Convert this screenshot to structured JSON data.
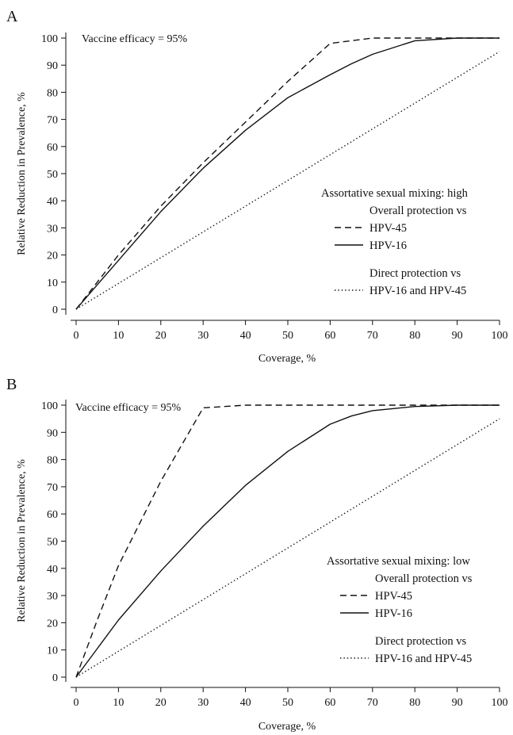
{
  "chart_data": [
    {
      "type": "line",
      "panel_label": "A",
      "annotation": "Vaccine efficacy = 95%",
      "xlabel": "Coverage, %",
      "ylabel": "Relative Reduction in Prevalence, %",
      "xlim": [
        0,
        100
      ],
      "ylim": [
        0,
        100
      ],
      "xticks": [
        0,
        10,
        20,
        30,
        40,
        50,
        60,
        70,
        80,
        90,
        100
      ],
      "yticks": [
        0,
        10,
        20,
        30,
        40,
        50,
        60,
        70,
        80,
        90,
        100
      ],
      "legend": {
        "title": "Assortative sexual mixing: high",
        "groups": [
          {
            "heading": "Overall protection vs",
            "entries": [
              {
                "label": "HPV-45",
                "series": 0
              },
              {
                "label": "HPV-16",
                "series": 1
              }
            ]
          },
          {
            "heading": "Direct protection vs",
            "entries": [
              {
                "label": "HPV-16 and HPV-45",
                "series": 2
              }
            ]
          }
        ]
      },
      "series": [
        {
          "style": "dashed",
          "x": [
            0,
            5,
            10,
            20,
            30,
            40,
            50,
            60,
            70,
            80,
            90,
            100
          ],
          "y": [
            0,
            10,
            20,
            38,
            54,
            69,
            84,
            98,
            100,
            100,
            100,
            100
          ]
        },
        {
          "style": "solid",
          "x": [
            0,
            5,
            10,
            20,
            30,
            40,
            50,
            60,
            65,
            70,
            80,
            90,
            100
          ],
          "y": [
            0,
            9,
            18,
            36,
            52,
            66,
            78,
            86.5,
            90.5,
            94,
            99,
            100,
            100
          ]
        },
        {
          "style": "dotted",
          "x": [
            0,
            100
          ],
          "y": [
            0,
            95
          ]
        }
      ]
    },
    {
      "type": "line",
      "panel_label": "B",
      "annotation": "Vaccine efficacy = 95%",
      "xlabel": "Coverage, %",
      "ylabel": "Relative Reduction in Prevalence, %",
      "xlim": [
        0,
        100
      ],
      "ylim": [
        0,
        100
      ],
      "xticks": [
        0,
        10,
        20,
        30,
        40,
        50,
        60,
        70,
        80,
        90,
        100
      ],
      "yticks": [
        0,
        10,
        20,
        30,
        40,
        50,
        60,
        70,
        80,
        90,
        100
      ],
      "legend": {
        "title": "Assortative sexual mixing: low",
        "groups": [
          {
            "heading": "Overall protection vs",
            "entries": [
              {
                "label": "HPV-45",
                "series": 0
              },
              {
                "label": "HPV-16",
                "series": 1
              }
            ]
          },
          {
            "heading": "Direct protection vs",
            "entries": [
              {
                "label": "HPV-16 and HPV-45",
                "series": 2
              }
            ]
          }
        ]
      },
      "series": [
        {
          "style": "dashed",
          "x": [
            0,
            5,
            10,
            20,
            30,
            40,
            50,
            60,
            70,
            80,
            90,
            100
          ],
          "y": [
            0,
            21,
            41,
            72,
            99,
            100,
            100,
            100,
            100,
            100,
            100,
            100
          ]
        },
        {
          "style": "solid",
          "x": [
            0,
            5,
            10,
            20,
            30,
            40,
            50,
            60,
            65,
            70,
            80,
            90,
            100
          ],
          "y": [
            0,
            10.5,
            21,
            39,
            55.5,
            70.5,
            83,
            93,
            96,
            98,
            99.5,
            100,
            100
          ]
        },
        {
          "style": "dotted",
          "x": [
            0,
            100
          ],
          "y": [
            0,
            95
          ]
        }
      ]
    }
  ]
}
